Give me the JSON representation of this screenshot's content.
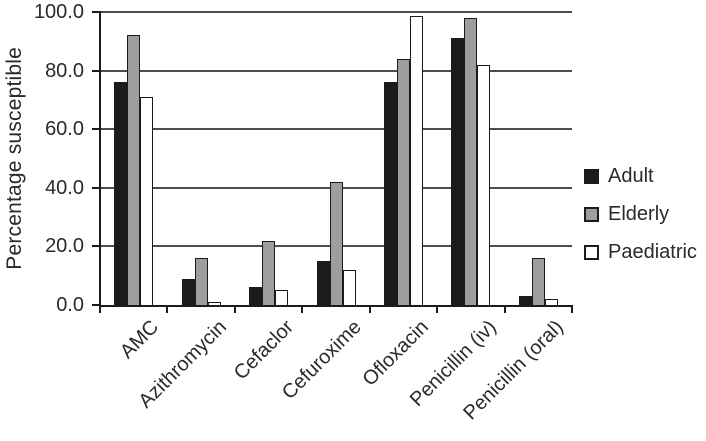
{
  "chart_data": {
    "type": "bar",
    "title": "",
    "ylabel": "Percentage susceptible",
    "xlabel": "",
    "ylim": [
      0,
      100
    ],
    "yticks": [
      0,
      20,
      40,
      60,
      80,
      100
    ],
    "ytick_labels": [
      "0.0",
      "20.0",
      "40.0",
      "60.0",
      "80.0",
      "100.0"
    ],
    "categories": [
      "AMC",
      "Azithromycin",
      "Cefaclor",
      "Cefuroxime",
      "Ofloxacin",
      "Penicillin (iv)",
      "Penicillin (oral)"
    ],
    "series": [
      {
        "name": "Adult",
        "color": "#1b1b1b",
        "values": [
          76,
          9,
          6,
          15,
          76,
          91,
          3
        ]
      },
      {
        "name": "Elderly",
        "color": "#9e9e9e",
        "values": [
          92,
          16,
          22,
          42,
          84,
          98,
          16
        ]
      },
      {
        "name": "Paediatric",
        "color": "#ffffff",
        "values": [
          71,
          1,
          5,
          12,
          98.5,
          82,
          2
        ]
      }
    ],
    "legend_position": "right",
    "grid": "horizontal",
    "colors": {
      "bar_outline": "#1b1b1b",
      "gridline": "#4d4d4d",
      "axis": "#1b1b1b",
      "text": "#2a2a2a",
      "background": "#ffffff"
    }
  }
}
